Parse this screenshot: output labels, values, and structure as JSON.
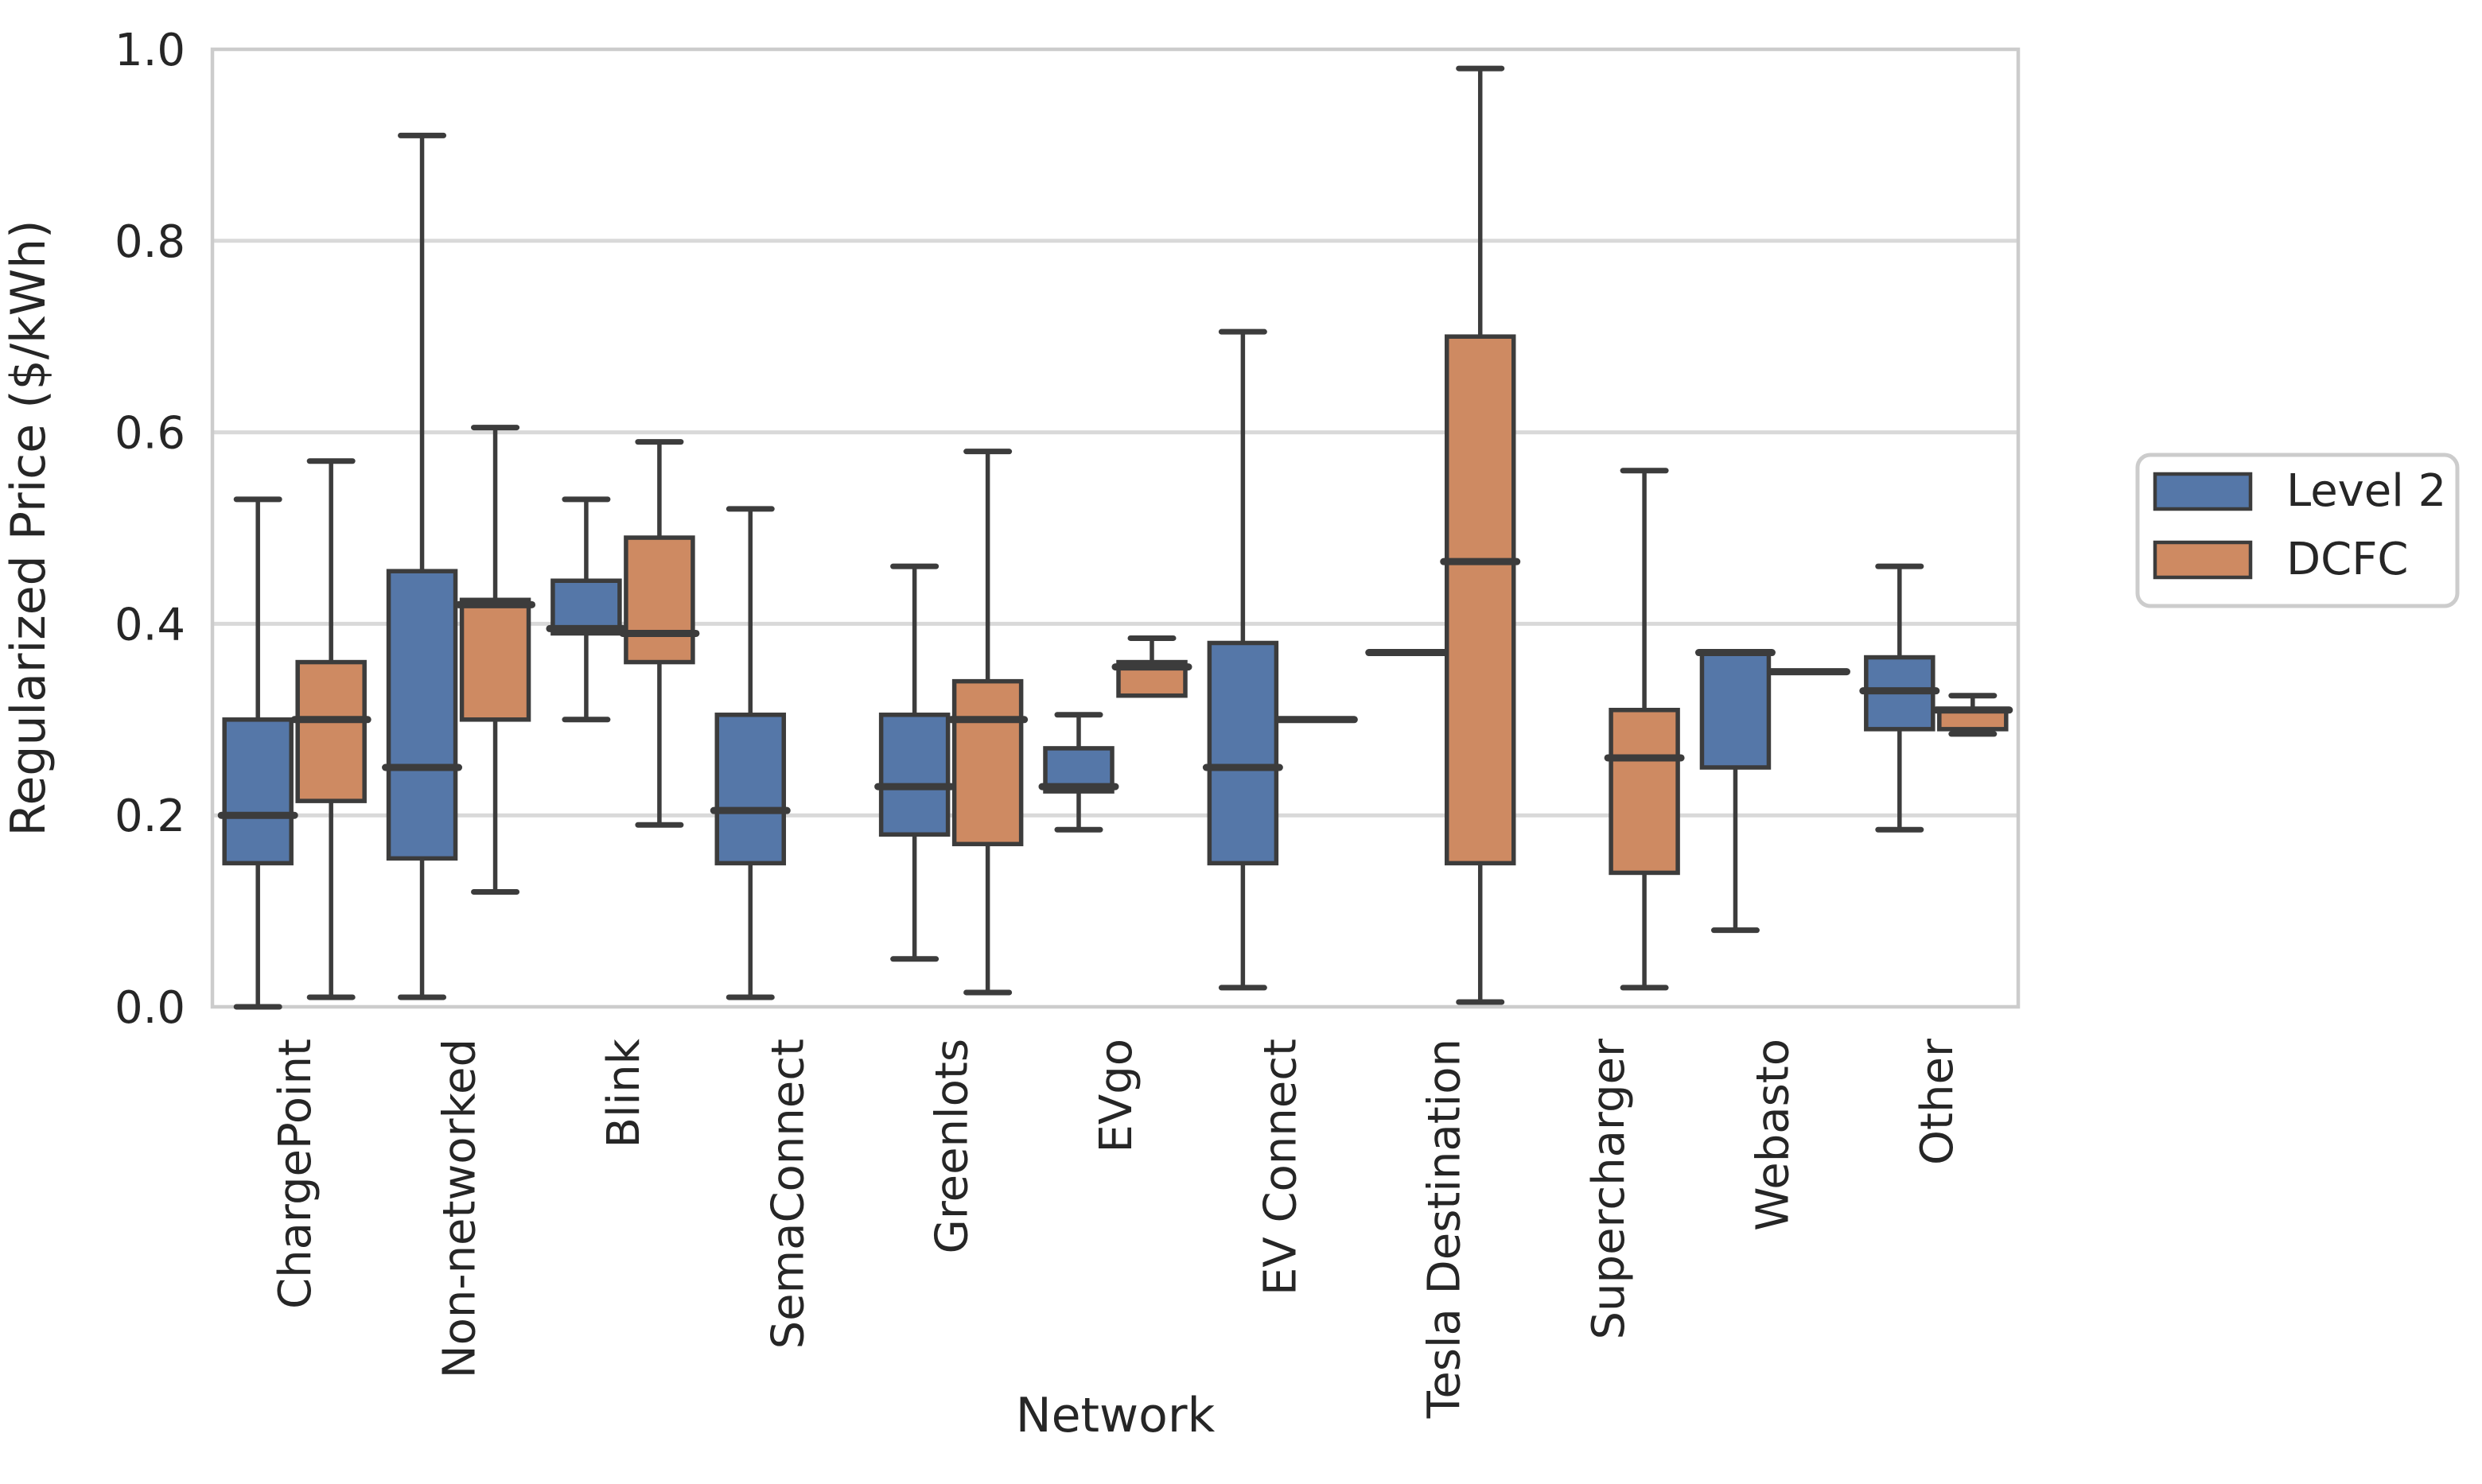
{
  "chart_data": {
    "type": "box",
    "title": "",
    "xlabel": "Network",
    "ylabel": "Regularized Price ($/kWh)",
    "ylim": [
      0.0,
      1.0
    ],
    "yticks": [
      0.0,
      0.2,
      0.4,
      0.6,
      0.8,
      1.0
    ],
    "ytick_labels": [
      "0.0",
      "0.2",
      "0.4",
      "0.6",
      "0.8",
      "1.0"
    ],
    "grid": true,
    "legend": {
      "position": "right",
      "entries": [
        {
          "label": "Level 2",
          "color": "#5577A8"
        },
        {
          "label": "DCFC",
          "color": "#CE8A62"
        }
      ]
    },
    "colors": {
      "level2_fill": "#5577A8",
      "dcfc_fill": "#CE8A62",
      "box_edge": "#3C3C3C",
      "gridline": "#D9D9D9",
      "plot_border": "#CCCCCC",
      "text": "#262626"
    },
    "categories": [
      "ChargePoint",
      "Non-networked",
      "Blink",
      "SemaConnect",
      "Greenlots",
      "EVgo",
      "EV Connect",
      "Tesla Destination",
      "Supercharger",
      "Webasto",
      "Other"
    ],
    "series": [
      {
        "name": "Level 2",
        "color": "#5577A8",
        "boxes": [
          {
            "lo": 0.0,
            "q1": 0.15,
            "med": 0.2,
            "q3": 0.3,
            "hi": 0.53
          },
          {
            "lo": 0.01,
            "q1": 0.155,
            "med": 0.25,
            "q3": 0.455,
            "hi": 0.91
          },
          {
            "lo": 0.3,
            "q1": 0.39,
            "med": 0.395,
            "q3": 0.445,
            "hi": 0.53
          },
          {
            "lo": 0.01,
            "q1": 0.15,
            "med": 0.205,
            "q3": 0.305,
            "hi": 0.52
          },
          {
            "lo": 0.05,
            "q1": 0.18,
            "med": 0.23,
            "q3": 0.305,
            "hi": 0.46
          },
          {
            "lo": 0.185,
            "q1": 0.225,
            "med": 0.23,
            "q3": 0.27,
            "hi": 0.305
          },
          {
            "lo": 0.02,
            "q1": 0.15,
            "med": 0.25,
            "q3": 0.38,
            "hi": 0.705
          },
          {
            "lo": 0.37,
            "q1": 0.37,
            "med": 0.37,
            "q3": 0.37,
            "hi": 0.37
          },
          null,
          {
            "lo": 0.08,
            "q1": 0.25,
            "med": 0.37,
            "q3": 0.37,
            "hi": 0.37
          },
          {
            "lo": 0.185,
            "q1": 0.29,
            "med": 0.33,
            "q3": 0.365,
            "hi": 0.46
          }
        ]
      },
      {
        "name": "DCFC",
        "color": "#CE8A62",
        "boxes": [
          {
            "lo": 0.01,
            "q1": 0.215,
            "med": 0.3,
            "q3": 0.36,
            "hi": 0.57
          },
          {
            "lo": 0.12,
            "q1": 0.3,
            "med": 0.42,
            "q3": 0.425,
            "hi": 0.605
          },
          {
            "lo": 0.19,
            "q1": 0.36,
            "med": 0.39,
            "q3": 0.49,
            "hi": 0.59
          },
          null,
          {
            "lo": 0.015,
            "q1": 0.17,
            "med": 0.3,
            "q3": 0.34,
            "hi": 0.58
          },
          {
            "lo": 0.325,
            "q1": 0.325,
            "med": 0.355,
            "q3": 0.36,
            "hi": 0.385
          },
          {
            "lo": 0.3,
            "q1": 0.3,
            "med": 0.3,
            "q3": 0.3,
            "hi": 0.3
          },
          {
            "lo": 0.005,
            "q1": 0.15,
            "med": 0.465,
            "q3": 0.7,
            "hi": 0.98
          },
          {
            "lo": 0.02,
            "q1": 0.14,
            "med": 0.26,
            "q3": 0.31,
            "hi": 0.56
          },
          {
            "lo": 0.35,
            "q1": 0.35,
            "med": 0.35,
            "q3": 0.35,
            "hi": 0.35
          },
          {
            "lo": 0.285,
            "q1": 0.29,
            "med": 0.31,
            "q3": 0.31,
            "hi": 0.325
          }
        ]
      }
    ]
  }
}
